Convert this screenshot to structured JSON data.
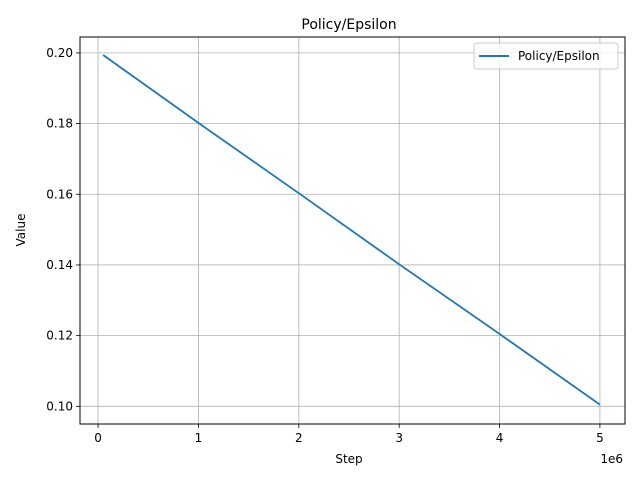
{
  "chart_data": {
    "type": "line",
    "title": "Policy/Epsilon",
    "xlabel": "Step",
    "ylabel": "Value",
    "x_offset_label": "1e6",
    "x_scale": 1000000,
    "xlim": [
      -180000,
      5250000
    ],
    "ylim": [
      0.095,
      0.2045
    ],
    "x_ticks": [
      0,
      1,
      2,
      3,
      4,
      5
    ],
    "x_tick_labels": [
      "0",
      "1",
      "2",
      "3",
      "4",
      "5"
    ],
    "y_ticks": [
      0.1,
      0.12,
      0.14,
      0.16,
      0.18,
      0.2
    ],
    "y_tick_labels": [
      "0.10",
      "0.12",
      "0.14",
      "0.16",
      "0.18",
      "0.20"
    ],
    "grid": true,
    "legend_position": "top-right",
    "series": [
      {
        "name": "Policy/Epsilon",
        "color": "#1f77b4",
        "x": [
          50000,
          1000000,
          2000000,
          3000000,
          4000000,
          5000000
        ],
        "y": [
          0.1994,
          0.1802,
          0.1603,
          0.1402,
          0.1205,
          0.1005
        ]
      }
    ]
  }
}
